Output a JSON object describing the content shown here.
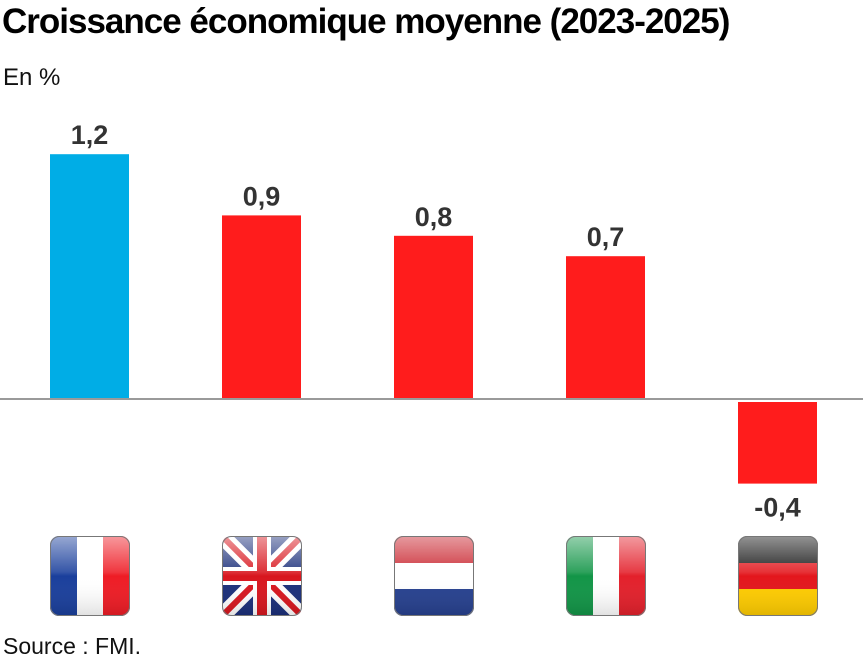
{
  "header": {
    "title": "Croissance économique moyenne (2023-2025)",
    "unit": "En %"
  },
  "footer": {
    "source": "Source : FMI."
  },
  "colors": {
    "highlight": "#00ade6",
    "default": "#ff1c1c",
    "axis": "#9a9a9a",
    "label": "#333333"
  },
  "chart_data": {
    "type": "bar",
    "categories": [
      "France",
      "Royaume-Uni",
      "Pays-Bas",
      "Italie",
      "Allemagne"
    ],
    "values": [
      1.2,
      0.9,
      0.8,
      0.7,
      -0.4
    ],
    "value_labels": [
      "1,2",
      "0,9",
      "0,8",
      "0,7",
      "-0,4"
    ],
    "highlight_index": 0,
    "category_icons": [
      "flag-france-icon",
      "flag-uk-icon",
      "flag-netherlands-icon",
      "flag-italy-icon",
      "flag-germany-icon"
    ],
    "title": "Croissance économique moyenne (2023-2025)",
    "ylabel": "En %",
    "ylim": [
      -0.4,
      1.2
    ],
    "grid": false,
    "legend": "none"
  }
}
